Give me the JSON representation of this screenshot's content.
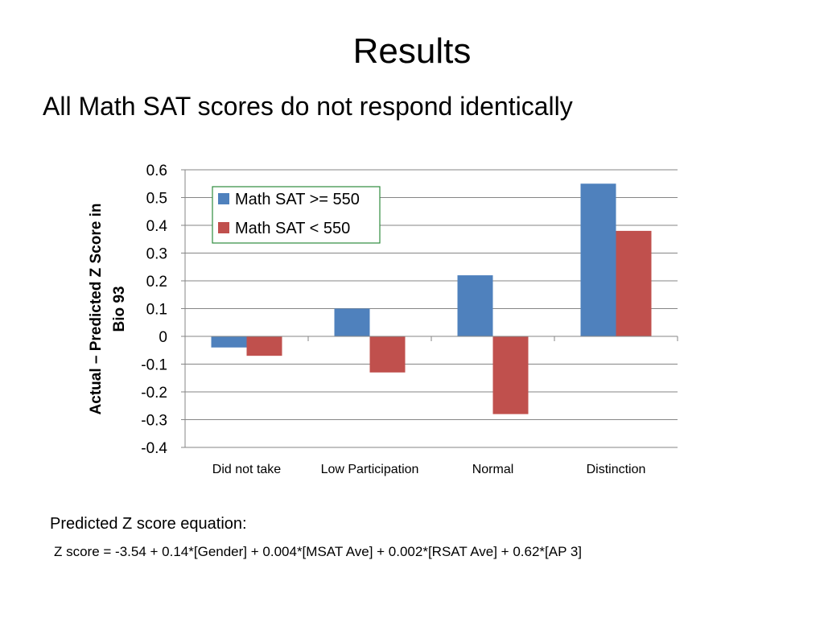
{
  "slide": {
    "title": "Results",
    "subtitle": "All Math SAT scores do not respond identically",
    "equation_label": "Predicted Z score equation:",
    "equation": "Z score =  -3.54 + 0.14*[Gender] + 0.004*[MSAT Ave] + 0.002*[RSAT Ave] + 0.62*[AP 3]"
  },
  "chart_data": {
    "type": "bar",
    "title": "",
    "xlabel": "",
    "ylabel": "Actual – Predicted Z Score in Bio 93",
    "ylabel_lines": [
      "Actual – Predicted Z Score in",
      "Bio 93"
    ],
    "categories": [
      "Did not take",
      "Low Participation",
      "Normal",
      "Distinction"
    ],
    "series": [
      {
        "name": "Math SAT >= 550",
        "color": "#4F81BD",
        "values": [
          -0.04,
          0.1,
          0.22,
          0.55
        ]
      },
      {
        "name": "Math SAT < 550",
        "color": "#C0504D",
        "values": [
          -0.07,
          -0.13,
          -0.28,
          0.38
        ]
      }
    ],
    "ylim": [
      -0.4,
      0.6
    ],
    "yticks": [
      0.6,
      0.5,
      0.4,
      0.3,
      0.2,
      0.1,
      0,
      -0.1,
      -0.2,
      -0.3,
      -0.4
    ],
    "ytick_labels": [
      "0.6",
      "0.5",
      "0.4",
      "0.3",
      "0.2",
      "0.1",
      "0",
      "-0.1",
      "-0.2",
      "-0.3",
      "-0.4"
    ],
    "grid": true,
    "gridline_color": "#868686",
    "legend_border_color": "#2E8B3E",
    "legend_position": "top-left"
  }
}
